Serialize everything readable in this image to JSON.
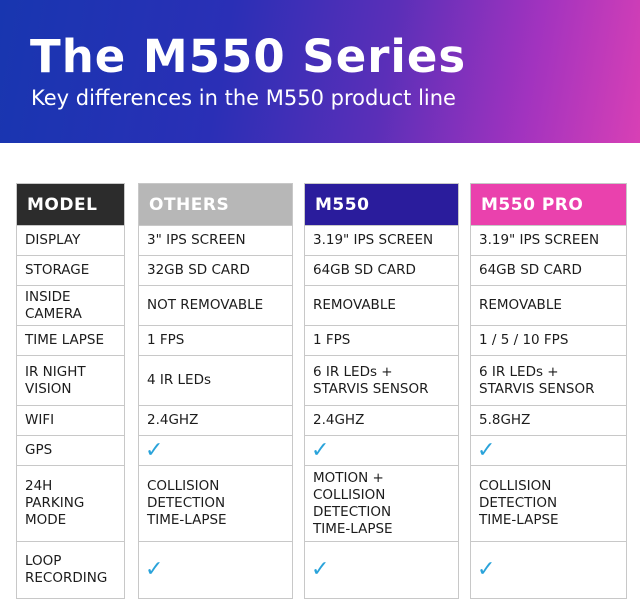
{
  "header": {
    "title": "The M550 Series",
    "subtitle": "Key differences in the M550 product line"
  },
  "colors": {
    "model_header": "#2c2c2c",
    "others_header": "#b7b7b7",
    "m550_header": "#2a1c9c",
    "pro_header": "#ea41ad",
    "check": "#2aa3da"
  },
  "columns": {
    "model": {
      "label": "MODEL",
      "cells": [
        "DISPLAY",
        "STORAGE",
        "INSIDE\nCAMERA",
        "TIME LAPSE",
        "IR NIGHT\nVISION",
        "WIFI",
        "GPS",
        "24H\nPARKING\nMODE",
        "LOOP\nRECORDING"
      ]
    },
    "others": {
      "label": "OTHERS",
      "cells": [
        "3\" IPS SCREEN",
        "32GB SD CARD",
        "NOT REMOVABLE",
        "1 FPS",
        "4 IR LEDs",
        "2.4GHZ",
        "✓",
        "COLLISION\nDETECTION\nTIME-LAPSE",
        "✓"
      ]
    },
    "m550": {
      "label": "M550",
      "cells": [
        "3.19\" IPS SCREEN",
        "64GB SD CARD",
        "REMOVABLE",
        "1 FPS",
        "6 IR LEDs +\nSTARVIS SENSOR",
        "2.4GHZ",
        "✓",
        "MOTION +\nCOLLISION\nDETECTION\nTIME-LAPSE",
        "✓"
      ]
    },
    "pro": {
      "label": "M550 PRO",
      "cells": [
        "3.19\" IPS SCREEN",
        "64GB SD CARD",
        "REMOVABLE",
        "1 / 5 / 10 FPS",
        "6 IR LEDs +\nSTARVIS SENSOR",
        "5.8GHZ",
        "✓",
        "COLLISION\nDETECTION\nTIME-LAPSE",
        "✓"
      ]
    }
  }
}
